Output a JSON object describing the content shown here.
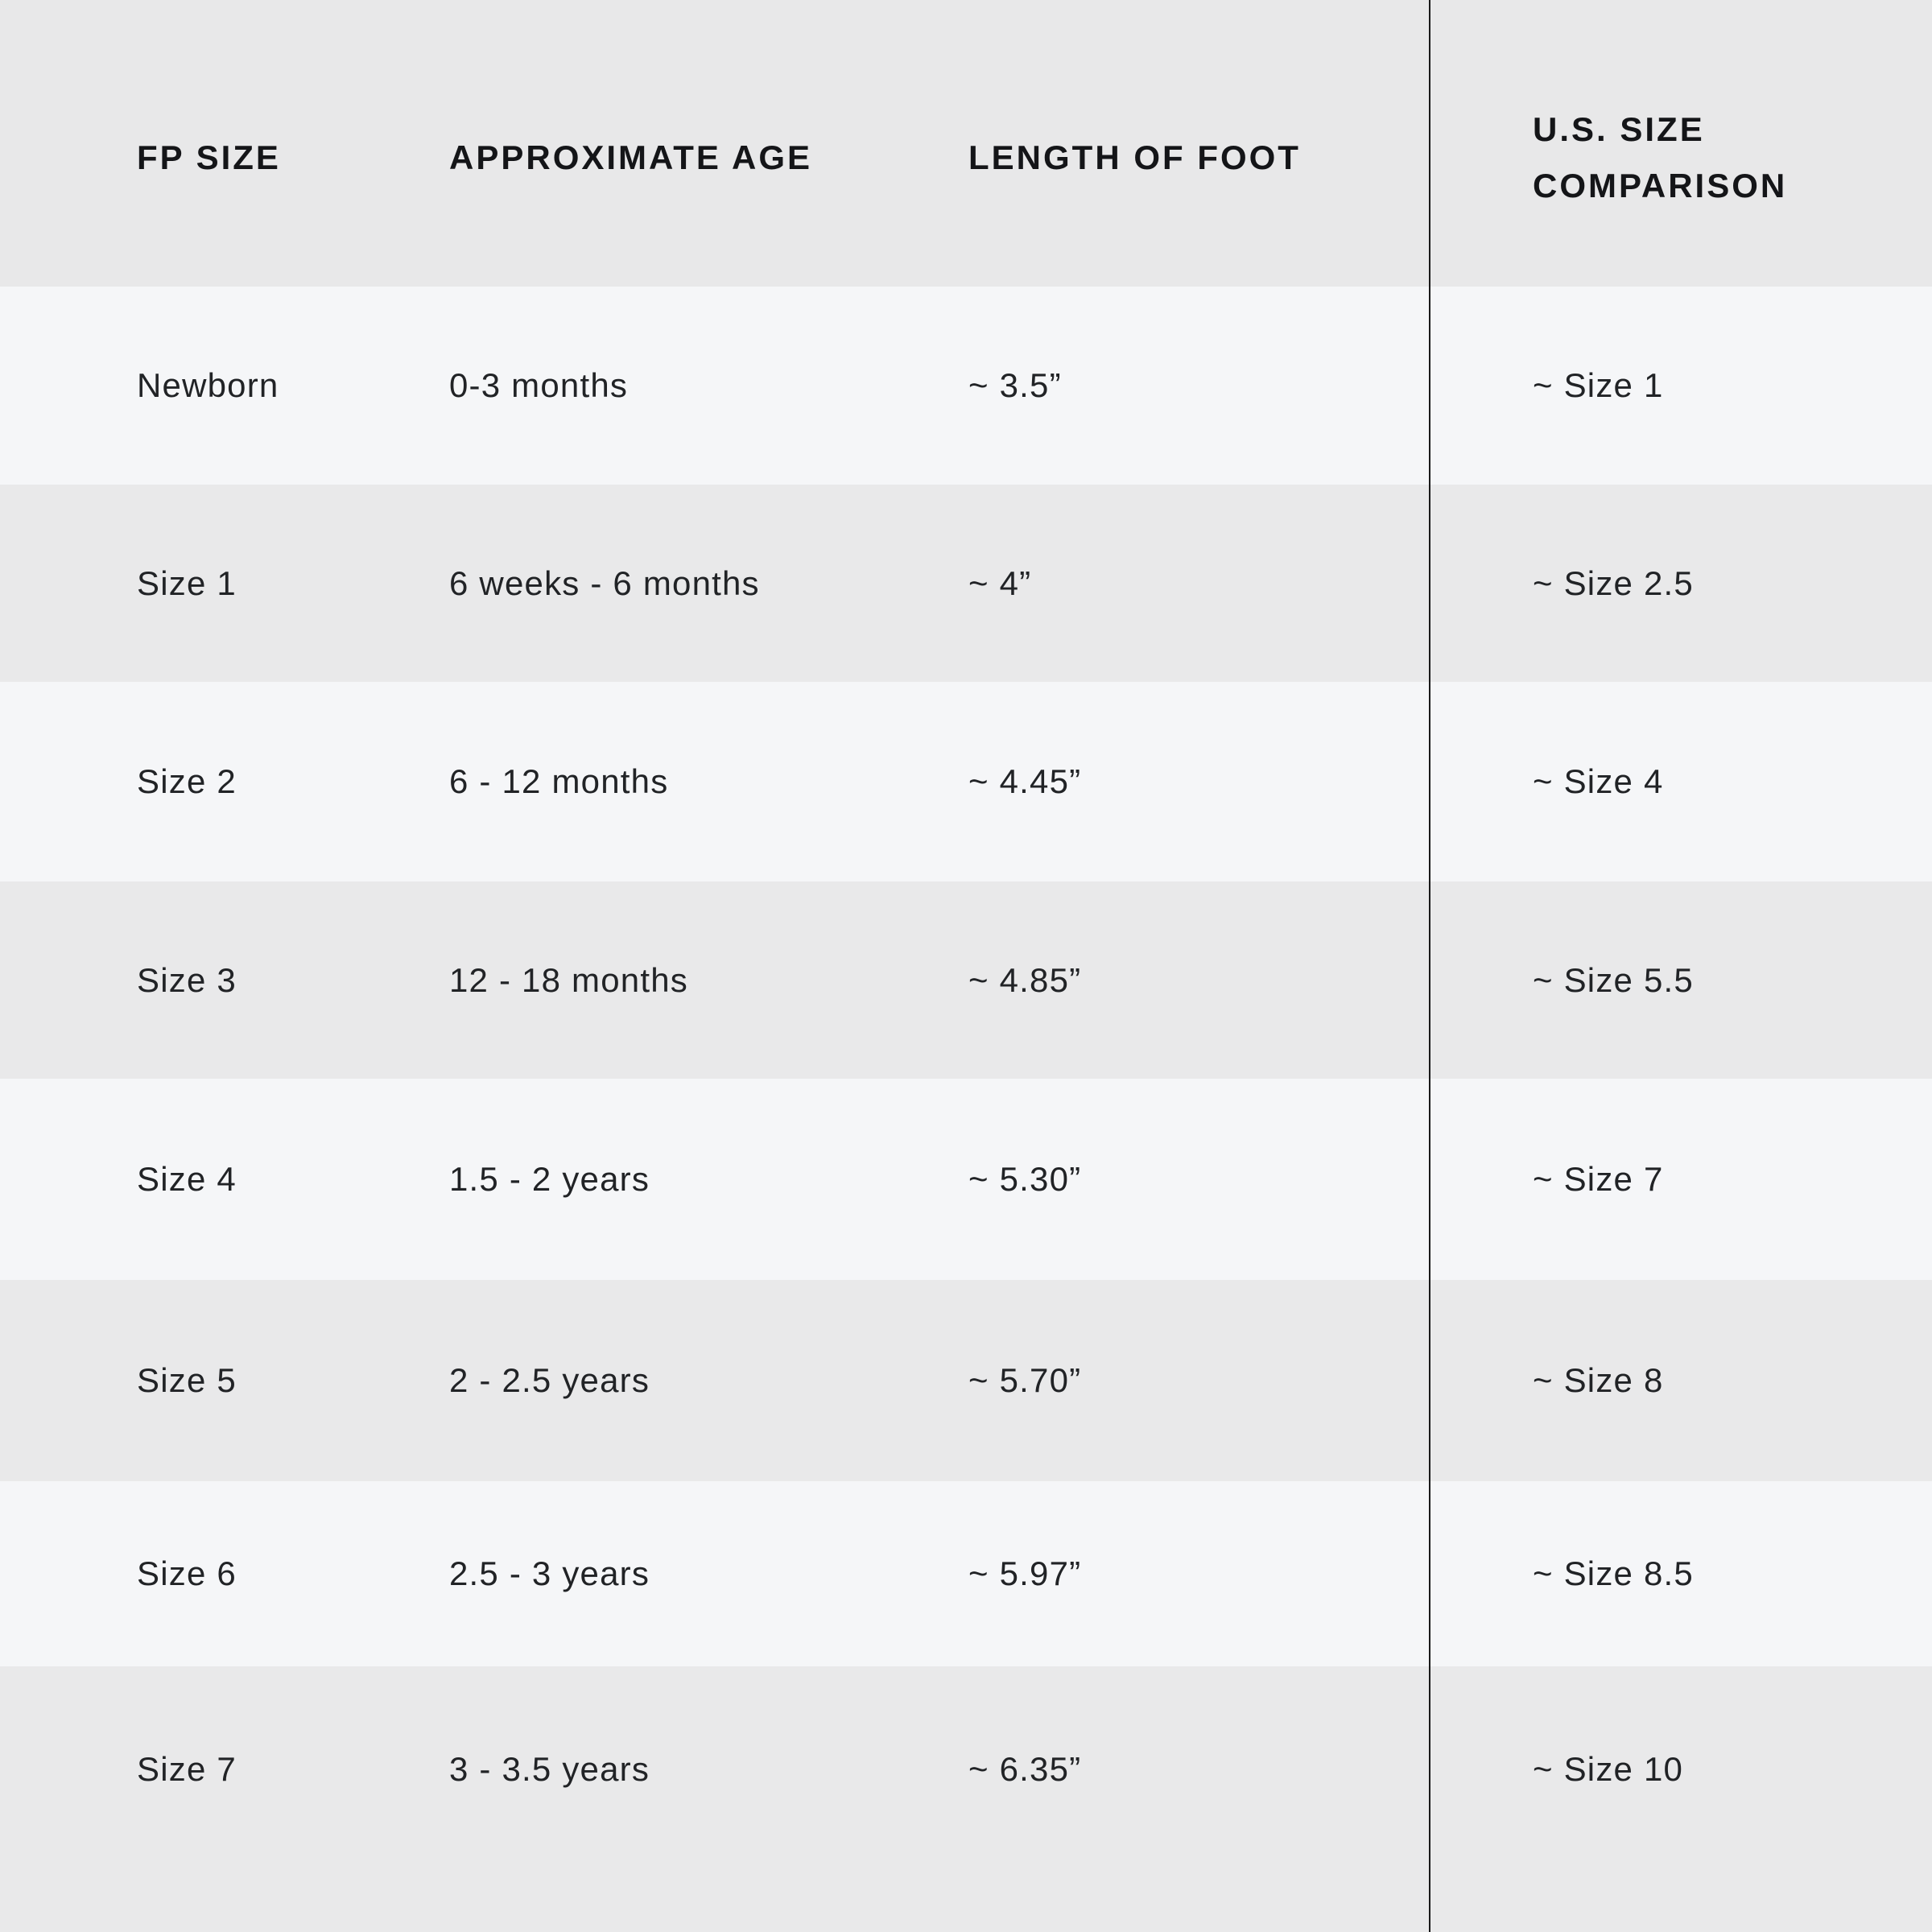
{
  "page": {
    "colors": {
      "light_band": "#f5f6f8",
      "shaded_band": "#e9e9ea",
      "header_band": "#e8e8e9",
      "divider": "#1a1a1a",
      "text": "#212326",
      "header_text": "#141518"
    }
  },
  "table": {
    "headers": {
      "fp_size": "FP SIZE",
      "approximate_age": "APPROXIMATE AGE",
      "length_of_foot": "LENGTH OF FOOT",
      "us_size_line1": "U.S. SIZE",
      "us_size_line2": "COMPARISON"
    }
  },
  "chart_data": {
    "type": "table",
    "columns": [
      "FP SIZE",
      "APPROXIMATE AGE",
      "LENGTH OF FOOT",
      "U.S. SIZE COMPARISON"
    ],
    "rows": [
      [
        "Newborn",
        "0-3 months",
        "~ 3.5”",
        "~ Size 1"
      ],
      [
        "Size 1",
        "6 weeks - 6 months",
        "~ 4”",
        "~ Size 2.5"
      ],
      [
        "Size 2",
        "6 - 12 months",
        "~ 4.45”",
        "~ Size 4"
      ],
      [
        "Size 3",
        "12 - 18 months",
        "~ 4.85”",
        "~ Size 5.5"
      ],
      [
        "Size 4",
        "1.5 - 2 years",
        "~ 5.30”",
        "~ Size 7"
      ],
      [
        "Size 5",
        "2 - 2.5 years",
        "~ 5.70”",
        "~ Size 8"
      ],
      [
        "Size 6",
        "2.5 - 3 years",
        "~ 5.97”",
        "~ Size 8.5"
      ],
      [
        "Size 7",
        "3 - 3.5 years",
        "~ 6.35”",
        "~ Size 10"
      ]
    ]
  }
}
